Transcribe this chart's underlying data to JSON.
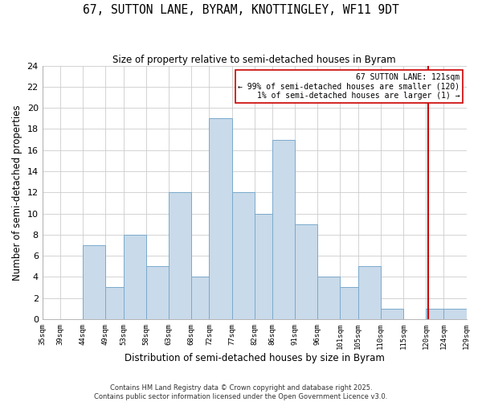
{
  "title": "67, SUTTON LANE, BYRAM, KNOTTINGLEY, WF11 9DT",
  "subtitle": "Size of property relative to semi-detached houses in Byram",
  "xlabel": "Distribution of semi-detached houses by size in Byram",
  "ylabel": "Number of semi-detached properties",
  "bin_edges": [
    35,
    39,
    44,
    49,
    53,
    58,
    63,
    68,
    72,
    77,
    82,
    86,
    91,
    96,
    101,
    105,
    110,
    115,
    120,
    124,
    129
  ],
  "bin_counts": [
    0,
    0,
    7,
    3,
    8,
    5,
    12,
    4,
    19,
    12,
    10,
    17,
    9,
    4,
    3,
    5,
    1,
    0,
    1,
    1
  ],
  "bar_color": "#c9daea",
  "bar_edge_color": "#7aaacc",
  "tick_labels": [
    "35sqm",
    "39sqm",
    "44sqm",
    "49sqm",
    "53sqm",
    "58sqm",
    "63sqm",
    "68sqm",
    "72sqm",
    "77sqm",
    "82sqm",
    "86sqm",
    "91sqm",
    "96sqm",
    "101sqm",
    "105sqm",
    "110sqm",
    "115sqm",
    "120sqm",
    "124sqm",
    "129sqm"
  ],
  "vline_x": 120.5,
  "vline_color": "#cc0000",
  "annotation_title": "67 SUTTON LANE: 121sqm",
  "annotation_line1": "← 99% of semi-detached houses are smaller (120)",
  "annotation_line2": "1% of semi-detached houses are larger (1) →",
  "ylim": [
    0,
    24
  ],
  "yticks": [
    0,
    2,
    4,
    6,
    8,
    10,
    12,
    14,
    16,
    18,
    20,
    22,
    24
  ],
  "footnote1": "Contains HM Land Registry data © Crown copyright and database right 2025.",
  "footnote2": "Contains public sector information licensed under the Open Government Licence v3.0.",
  "bg_color": "#ffffff",
  "grid_color": "#cccccc"
}
